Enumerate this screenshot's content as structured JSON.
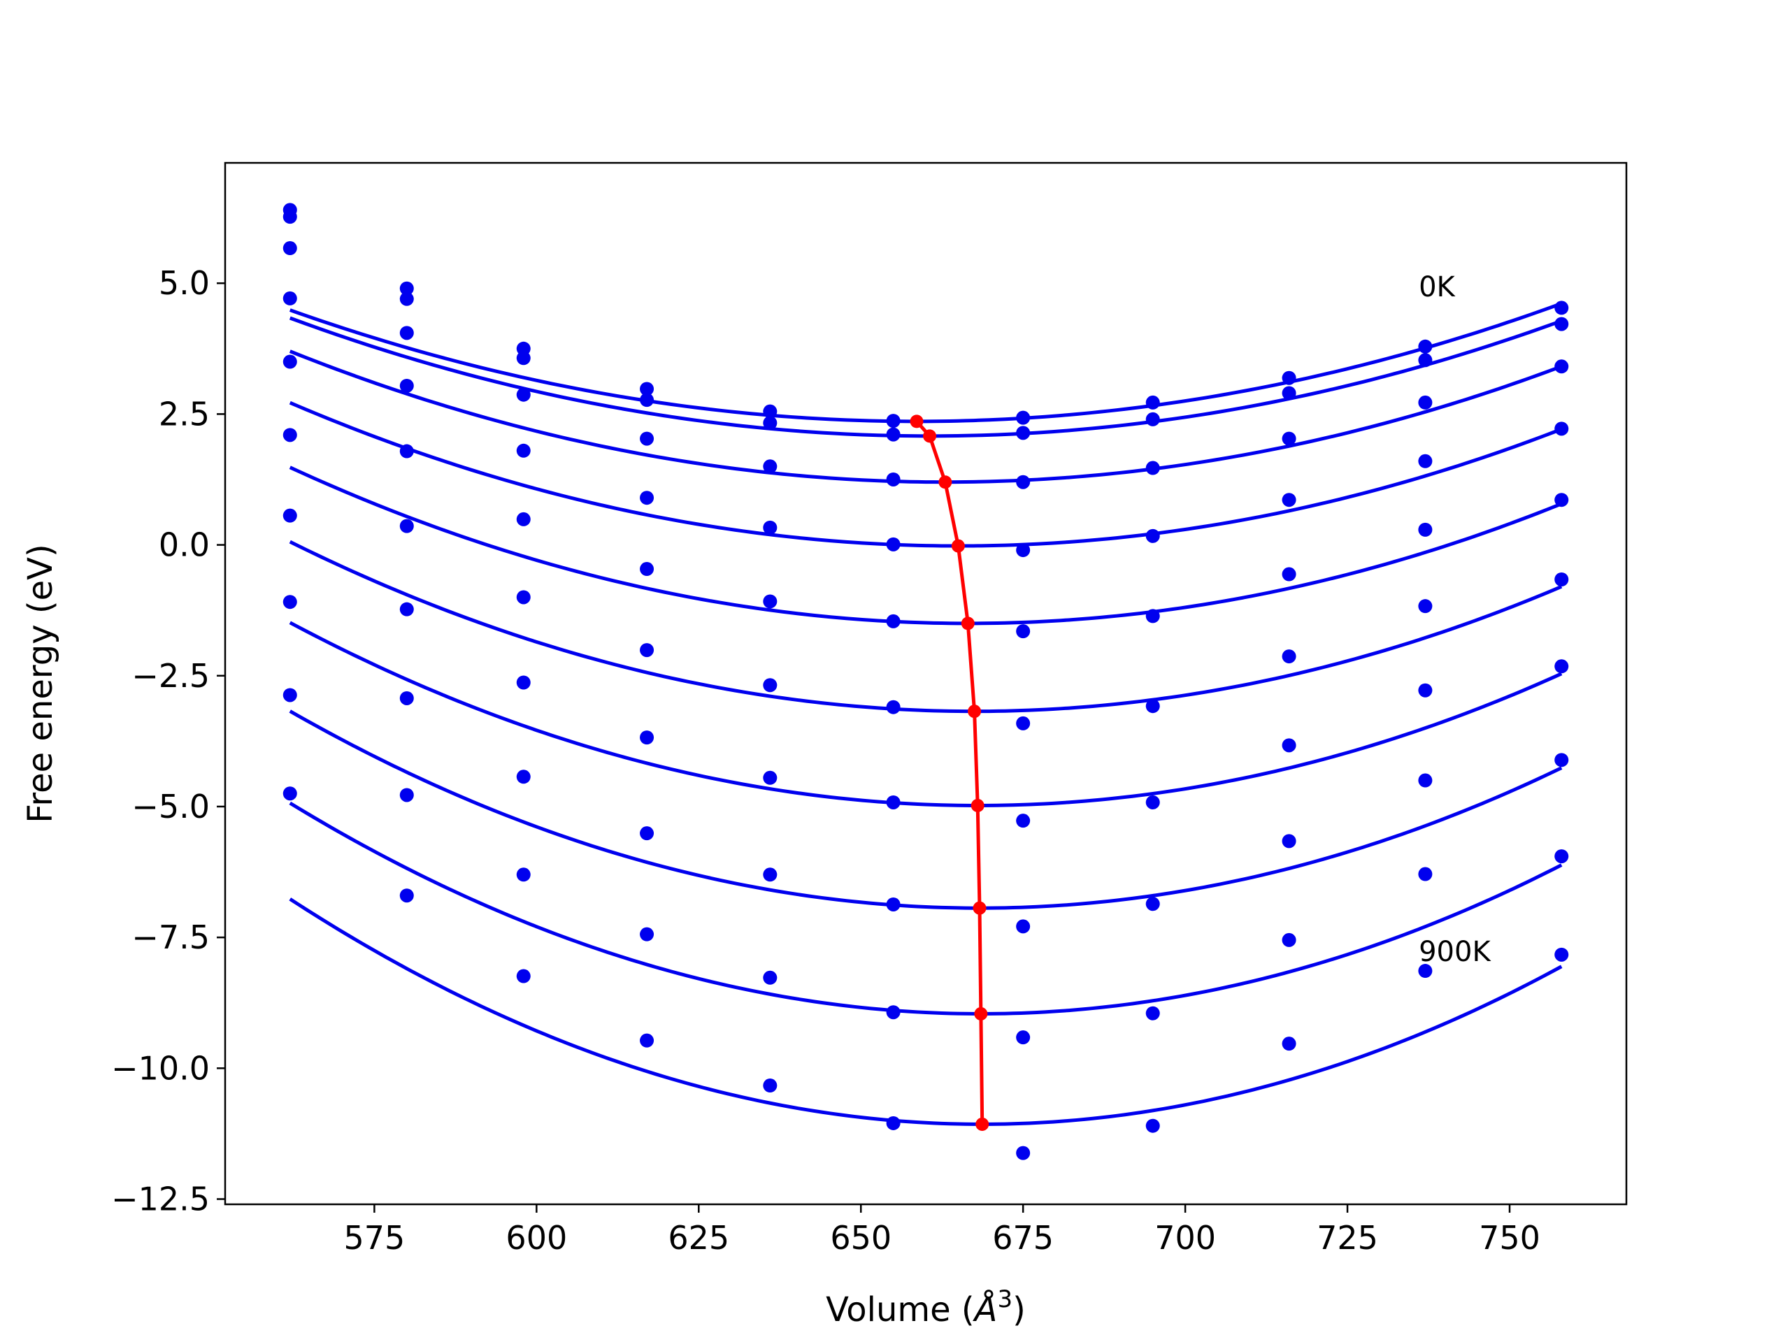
{
  "chart_data": {
    "type": "line",
    "xlabel_main": "Volume (",
    "xlabel_unit": "Å",
    "xlabel_exp": "3",
    "xlabel_close": ")",
    "ylabel": "Free energy (eV)",
    "xlim": [
      552,
      768
    ],
    "ylim": [
      -12.6,
      7.3
    ],
    "xticks": [
      575,
      600,
      625,
      650,
      675,
      700,
      725,
      750
    ],
    "yticks": [
      5.0,
      2.5,
      0.0,
      -2.5,
      -5.0,
      -7.5,
      -10.0,
      -12.5
    ],
    "xtick_labels": [
      "575",
      "600",
      "625",
      "650",
      "675",
      "700",
      "725",
      "750"
    ],
    "ytick_labels": [
      "5.0",
      "2.5",
      "0.0",
      "−2.5",
      "−5.0",
      "−7.5",
      "−10.0",
      "−12.5"
    ],
    "grid": false,
    "series_color": "#0000ee",
    "min_color": "#ff0000",
    "annotations": [
      {
        "text": "0K",
        "x": 736,
        "y": 4.75
      },
      {
        "text": "900K",
        "x": 736,
        "y": -7.95
      }
    ],
    "volumes": [
      562,
      580,
      598,
      617,
      636,
      655,
      675,
      695,
      716,
      737,
      758
    ],
    "series": [
      {
        "points": [
          6.4,
          4.9,
          3.75,
          2.98,
          2.55,
          2.37,
          2.43,
          2.72,
          3.19,
          3.79,
          4.53
        ],
        "fit": {
          "v0": 658.6,
          "e0": 2.36,
          "a": 0.000228
        }
      },
      {
        "points": [
          6.27,
          4.7,
          3.57,
          2.77,
          2.33,
          2.11,
          2.14,
          2.4,
          2.9,
          3.53,
          4.22
        ],
        "fit": {
          "v0": 660.6,
          "e0": 2.08,
          "a": 0.000232
        }
      },
      {
        "points": [
          5.67,
          4.05,
          2.87,
          2.03,
          1.5,
          1.25,
          1.2,
          1.47,
          2.03,
          2.72,
          3.41
        ],
        "fit": {
          "v0": 663.0,
          "e0": 1.2,
          "a": 0.000245
        }
      },
      {
        "points": [
          4.71,
          3.04,
          1.8,
          0.9,
          0.33,
          0.01,
          -0.1,
          0.17,
          0.86,
          1.6,
          2.22
        ],
        "fit": {
          "v0": 665.0,
          "e0": -0.02,
          "a": 0.000258
        }
      },
      {
        "points": [
          3.5,
          1.79,
          0.49,
          -0.46,
          -1.08,
          -1.46,
          -1.65,
          -1.36,
          -0.56,
          0.29,
          0.86
        ],
        "fit": {
          "v0": 666.5,
          "e0": -1.5,
          "a": 0.000273
        }
      },
      {
        "points": [
          2.1,
          0.36,
          -1.0,
          -2.01,
          -2.68,
          -3.1,
          -3.41,
          -3.08,
          -2.13,
          -1.17,
          -0.66
        ],
        "fit": {
          "v0": 667.5,
          "e0": -3.18,
          "a": 0.000291
        }
      },
      {
        "points": [
          0.56,
          -1.23,
          -2.63,
          -3.68,
          -4.45,
          -4.92,
          -5.27,
          -4.92,
          -3.83,
          -2.78,
          -2.32
        ],
        "fit": {
          "v0": 668.0,
          "e0": -4.98,
          "a": 0.000311
        }
      },
      {
        "points": [
          -1.09,
          -2.93,
          -4.43,
          -5.51,
          -6.3,
          -6.87,
          -7.29,
          -6.86,
          -5.66,
          -4.5,
          -4.11
        ],
        "fit": {
          "v0": 668.3,
          "e0": -6.94,
          "a": 0.000333
        }
      },
      {
        "points": [
          -2.87,
          -4.78,
          -6.3,
          -7.44,
          -8.27,
          -8.93,
          -9.41,
          -8.95,
          -7.55,
          -6.29,
          -5.95
        ],
        "fit": {
          "v0": 668.5,
          "e0": -8.96,
          "a": 0.000355
        }
      },
      {
        "points": [
          -4.75,
          -6.7,
          -8.24,
          -9.47,
          -10.33,
          -11.05,
          -11.62,
          -11.1,
          -9.53,
          -8.14,
          -7.83
        ],
        "fit": {
          "v0": 668.7,
          "e0": -11.07,
          "a": 0.000378
        }
      }
    ]
  }
}
